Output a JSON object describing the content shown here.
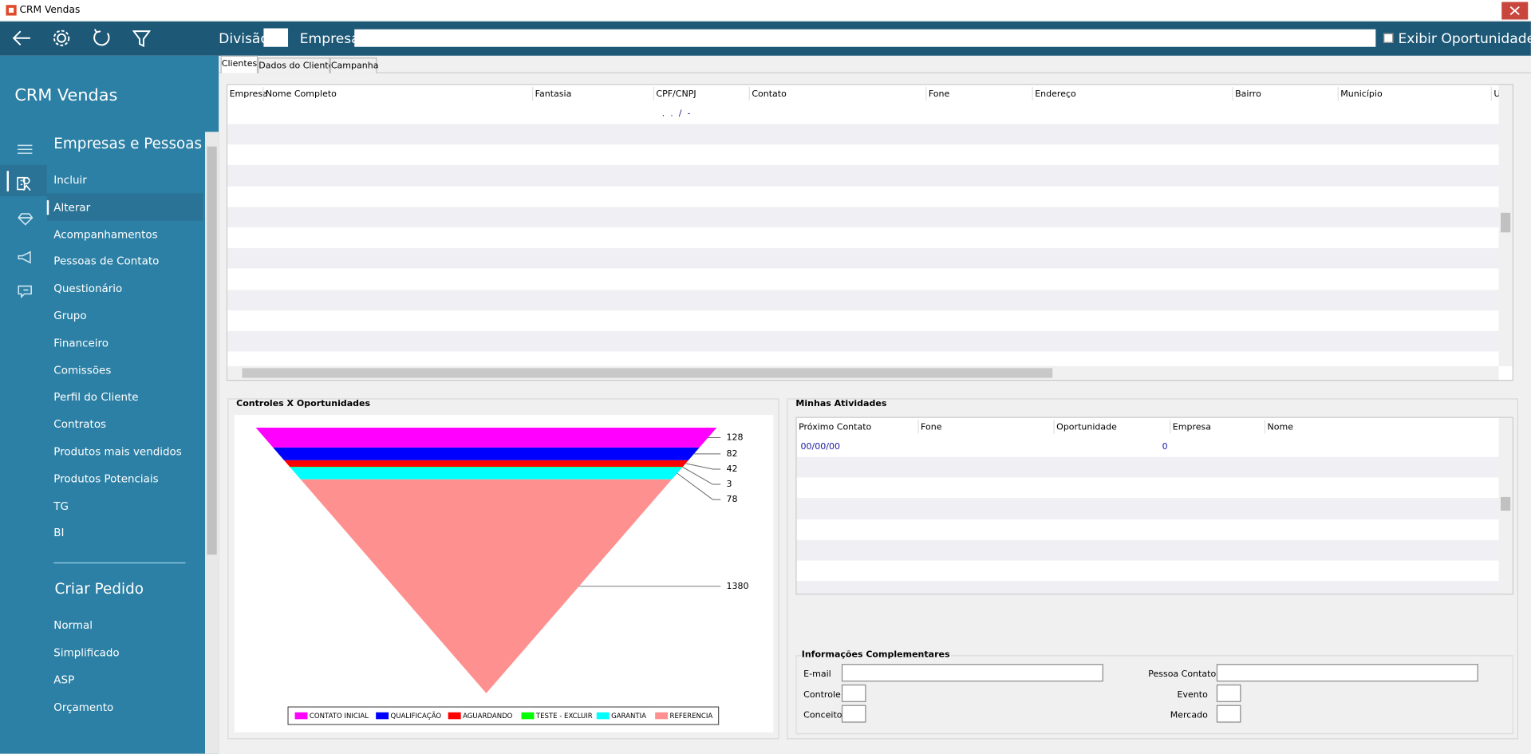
{
  "window": {
    "title": "CRM Vendas"
  },
  "toolbar": {
    "division_label": "Divisão",
    "company_label": "Empresa",
    "show_opportunities": "Exibir Oportunidades"
  },
  "sidebar": {
    "title": "CRM Vendas",
    "sections": [
      {
        "title": "Empresas e Pessoas",
        "items": [
          "Incluir",
          "Alterar",
          "Acompanhamentos",
          "Pessoas de Contato",
          "Questionário",
          "Grupo",
          "Financeiro",
          "Comissões",
          "Perfil do Cliente",
          "Contratos",
          "Produtos mais vendidos",
          "Produtos Potenciais",
          "TG",
          "BI"
        ]
      },
      {
        "title": "Criar Pedido",
        "items": [
          "Normal",
          "Simplificado",
          "ASP",
          "Orçamento"
        ]
      }
    ]
  },
  "tabs": [
    "Clientes",
    "Dados do Cliente",
    "Campanha"
  ],
  "clients_table": {
    "columns": [
      "Empresa",
      "Nome Completo",
      "Fantasia",
      "CPF/CNPJ",
      "Contato",
      "Fone",
      "Endereço",
      "Bairro",
      "Município",
      "U"
    ],
    "rows": [
      {
        "cpf_cnpj": ".  .  /  -"
      }
    ]
  },
  "funnel": {
    "title": "Controles X Oportunidades",
    "series": [
      {
        "name": "CONTATO INICIAL",
        "color": "#ff00ff",
        "value": 128
      },
      {
        "name": "QUALIFICAÇÃO",
        "color": "#0000ff",
        "value": 82
      },
      {
        "name": "AGUARDANDO",
        "color": "#ff0000",
        "value": 42
      },
      {
        "name": "TESTE - EXCLUIR",
        "color": "#00ff00",
        "value": 3
      },
      {
        "name": "GARANTIA",
        "color": "#00ffff",
        "value": 78
      },
      {
        "name": "REFERENCIA",
        "color": "#ff9090",
        "value": 1380
      }
    ]
  },
  "activities": {
    "title": "Minhas Atividades",
    "columns": [
      "Próximo Contato",
      "Fone",
      "Oportunidade",
      "Empresa",
      "Nome"
    ],
    "rows": [
      {
        "next_contact": "00/00/00",
        "opportunity": 0
      }
    ]
  },
  "info": {
    "title": "Informações Complementares",
    "fields": [
      "E-mail",
      "Pessoa Contato",
      "Controle",
      "Evento",
      "Conceito",
      "Mercado"
    ]
  }
}
